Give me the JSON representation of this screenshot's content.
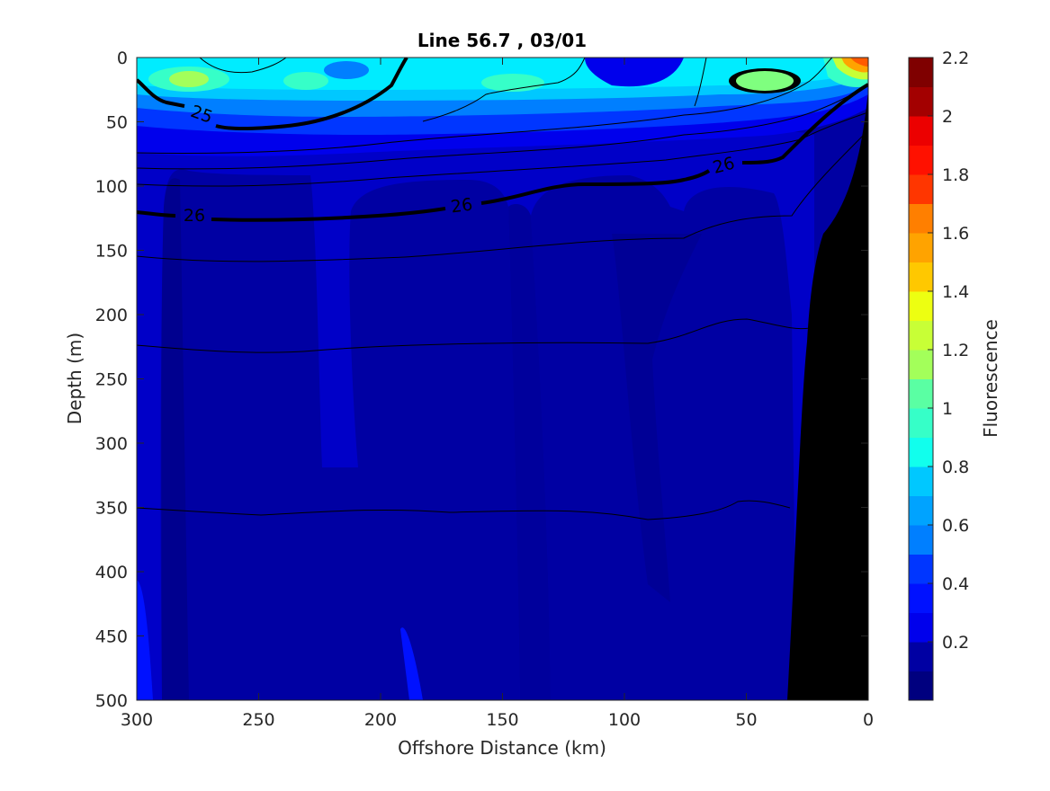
{
  "chart_data": {
    "type": "heatmap",
    "title": "Line 56.7 , 03/01",
    "xlabel": "Offshore Distance (km)",
    "ylabel": "Depth (m)",
    "xlim": [
      300,
      0
    ],
    "ylim": [
      0,
      500
    ],
    "x_ticks": [
      "300",
      "250",
      "200",
      "150",
      "100",
      "50",
      "0"
    ],
    "y_ticks": [
      "0",
      "50",
      "100",
      "150",
      "200",
      "250",
      "300",
      "350",
      "400",
      "450",
      "500"
    ],
    "colorbar": {
      "label": "Fluorescence",
      "ticks": [
        "0.2",
        "0.4",
        "0.6",
        "0.8",
        "1",
        "1.2",
        "1.4",
        "1.6",
        "1.8",
        "2",
        "2.2"
      ],
      "levels": [
        0,
        0.1,
        0.2,
        0.3,
        0.4,
        0.5,
        0.6,
        0.7,
        0.8,
        0.9,
        1.0,
        1.1,
        1.2,
        1.3,
        1.4,
        1.5,
        1.6,
        1.7,
        1.8,
        1.9,
        2.0,
        2.1,
        2.2
      ],
      "colors": [
        "#00007f",
        "#0000a3",
        "#0000c8",
        "#0000ec",
        "#0011ff",
        "#0036ff",
        "#005aff",
        "#007fff",
        "#00a3ff",
        "#00c8ff",
        "#00ecff",
        "#11ffed",
        "#36ffc8",
        "#5aff a3",
        "#7fff7f",
        "#a3ff5a",
        "#c8ff36",
        "#edff11",
        "#ffec00",
        "#ffc800",
        "#ffa300",
        "#ff7f00",
        "#ff5a00",
        "#ff3600",
        "#ff1100",
        "#ec0000",
        "#c80000",
        "#a30000",
        "#7f0000"
      ]
    },
    "fluorescence_regions": [
      {
        "level": 0.1,
        "desc": "deep background"
      },
      {
        "level": 0.2,
        "desc": "offshore column"
      },
      {
        "level": 0.3,
        "desc": "surface band"
      },
      {
        "level": 0.9,
        "desc": "surface maximum"
      },
      {
        "level": 1.1,
        "desc": "patch"
      },
      {
        "level": 1.9,
        "desc": "nearshore peak"
      }
    ],
    "density_contours": [
      {
        "label": "25",
        "emphasis": true
      },
      {
        "label": "26",
        "emphasis": true
      }
    ],
    "density_label_texts": [
      "25",
      "26",
      "26",
      "26"
    ],
    "bathymetry": "black"
  }
}
